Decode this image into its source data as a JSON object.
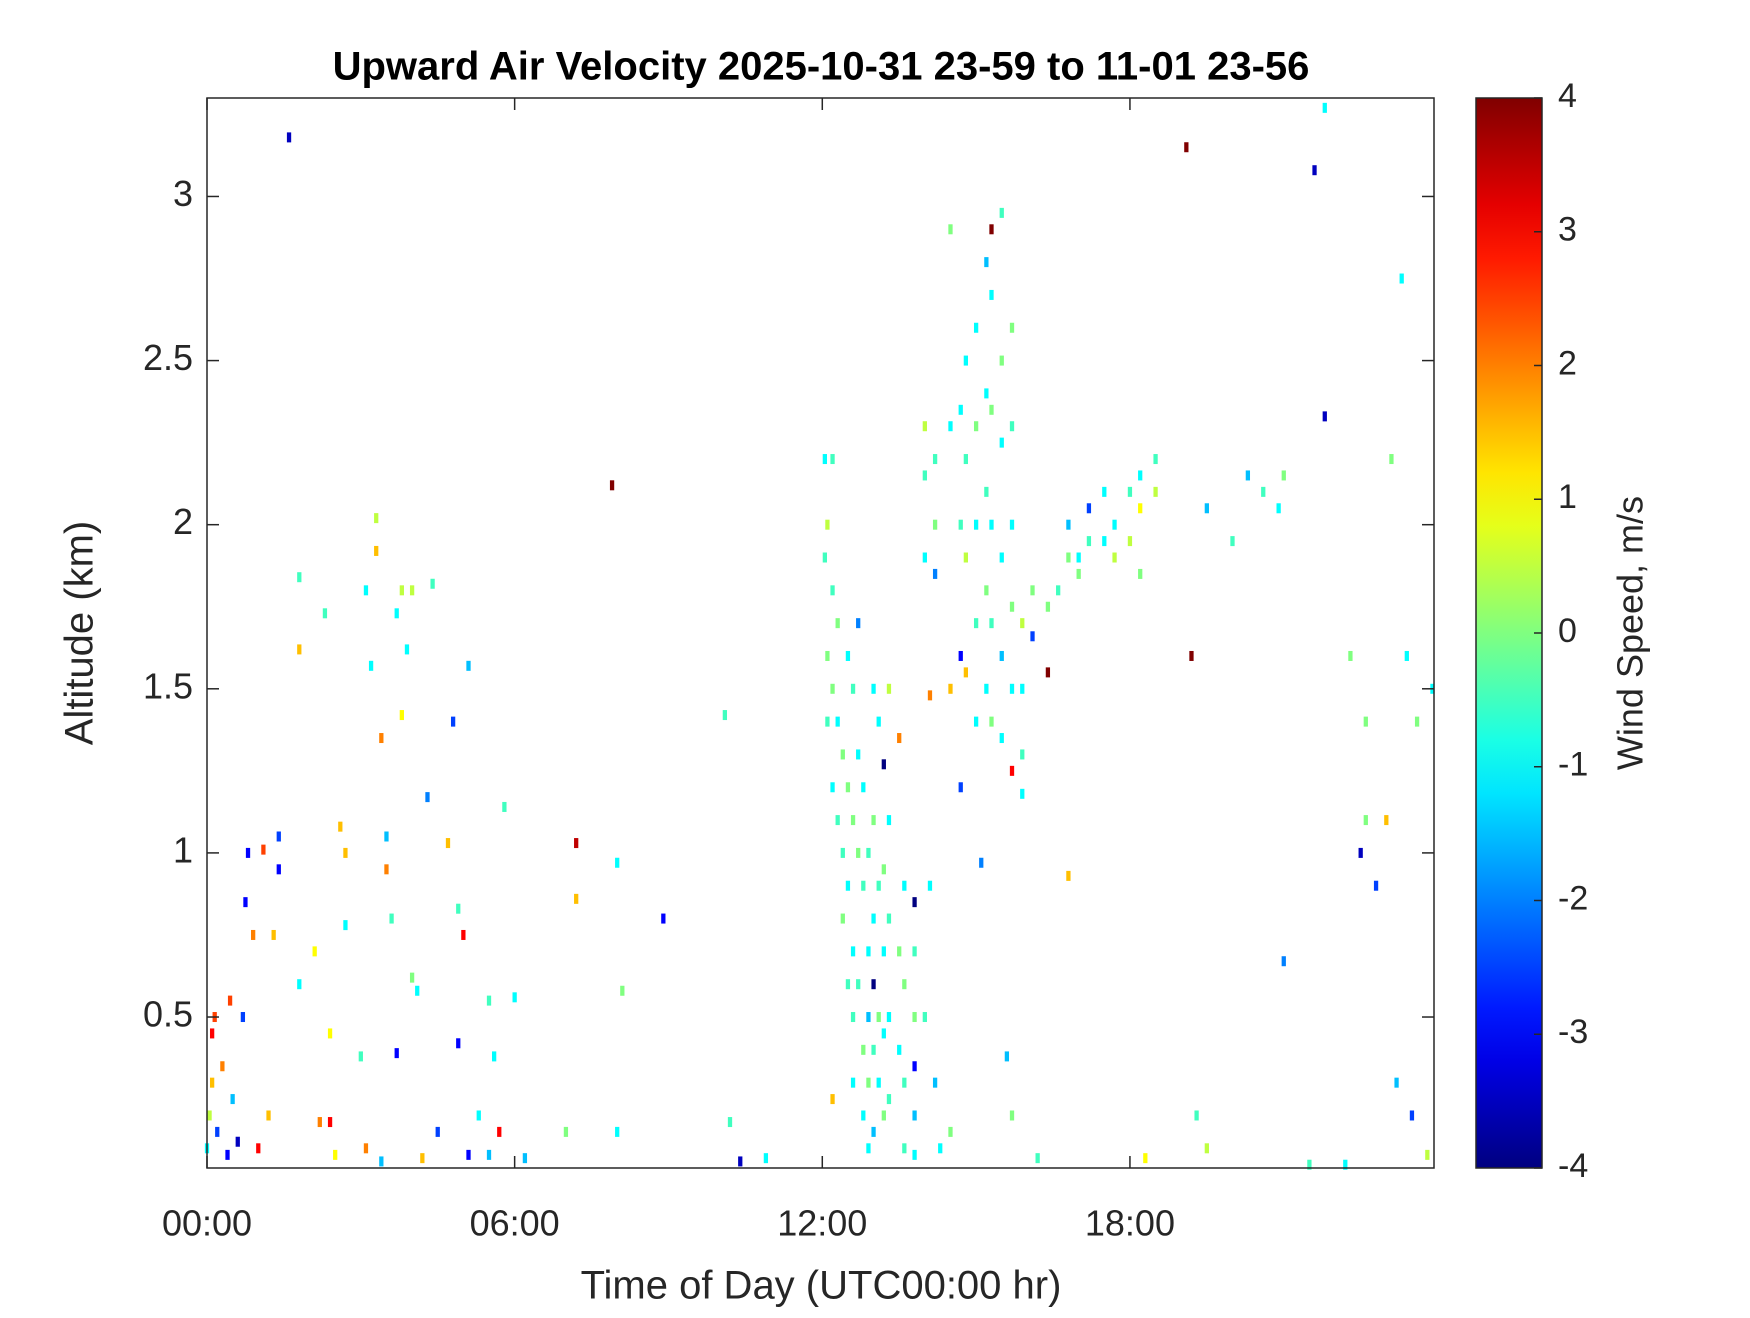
{
  "chart_data": {
    "type": "heatmap",
    "title": "Upward Air Velocity 2025-10-31 23-59 to 11-01 23-56",
    "x_label": "Time of Day (UTC00:00 hr)",
    "y_label": "Altitude (km)",
    "xlim": [
      0,
      23.93
    ],
    "xticks": [
      {
        "value": 0,
        "label": "00:00"
      },
      {
        "value": 6,
        "label": "06:00"
      },
      {
        "value": 12,
        "label": "12:00"
      },
      {
        "value": 18,
        "label": "18:00"
      }
    ],
    "ylim": [
      0.04,
      3.3
    ],
    "yticks": [
      0.5,
      1,
      1.5,
      2,
      2.5,
      3
    ],
    "colormap": "jet",
    "colorbar": {
      "label": "Wind Speed, m/s",
      "clim": [
        -4,
        4
      ],
      "ticks": [
        -4,
        -3,
        -2,
        -1,
        0,
        1,
        2,
        3,
        4
      ]
    },
    "x": [
      0,
      0.05,
      0.1,
      0.1,
      0.15,
      0.2,
      0.3,
      0.4,
      0.45,
      0.5,
      0.6,
      0.7,
      0.75,
      0.8,
      0.9,
      1,
      1.1,
      1.2,
      1.3,
      1.4,
      1.4,
      1.8,
      1.8,
      1.8,
      1.6,
      2.1,
      2.2,
      2.3,
      2.4,
      2.4,
      2.5,
      2.6,
      2.7,
      2.7,
      3,
      3.1,
      3.1,
      3.2,
      3.3,
      3.3,
      3.4,
      3.4,
      3.5,
      3.5,
      3.6,
      3.7,
      3.7,
      3.8,
      3.8,
      3.9,
      4,
      4,
      4.1,
      4.2,
      4.3,
      4.4,
      4.5,
      4.7,
      4.8,
      4.9,
      4.9,
      5,
      5.1,
      5.1,
      5.3,
      5.5,
      5.5,
      5.6,
      5.7,
      5.8,
      6,
      6.2,
      7,
      7.2,
      7.2,
      7.9,
      8,
      8,
      8.1,
      8.9,
      10.1,
      10.2,
      10.4,
      10.9,
      12.2,
      12.05,
      12.05,
      12.1,
      12.1,
      12.1,
      12.2,
      12.2,
      12.2,
      12.2,
      12.3,
      12.3,
      12.3,
      12.4,
      12.4,
      12.4,
      12.5,
      12.5,
      12.5,
      12.5,
      12.6,
      12.6,
      12.6,
      12.6,
      12.6,
      12.7,
      12.7,
      12.7,
      12.7,
      12.8,
      12.8,
      12.8,
      12.8,
      12.9,
      12.9,
      12.9,
      12.9,
      12.9,
      13,
      13,
      13,
      13,
      13,
      13,
      13.1,
      13.1,
      13.1,
      13.1,
      13.2,
      13.2,
      13.2,
      13.2,
      13.2,
      13.3,
      13.3,
      13.3,
      13.3,
      13.3,
      13.5,
      13.5,
      13.5,
      13.6,
      13.6,
      13.6,
      13.6,
      13.8,
      13.8,
      13.8,
      13.8,
      13.8,
      13.8,
      14,
      14,
      14,
      14,
      14.1,
      14.1,
      14.2,
      14.2,
      14.2,
      14.2,
      14.3,
      14.5,
      14.5,
      14.5,
      14.5,
      14.7,
      14.7,
      14.7,
      14.7,
      14.8,
      14.8,
      14.8,
      14.8,
      15,
      15,
      15,
      15,
      15,
      15.1,
      15.2,
      15.2,
      15.2,
      15.2,
      15.2,
      15.3,
      15.3,
      15.3,
      15.3,
      15.3,
      15.3,
      15.5,
      15.5,
      15.5,
      15.5,
      15.5,
      15.5,
      15.6,
      15.7,
      15.7,
      15.7,
      15.7,
      15.7,
      15.7,
      15.7,
      15.9,
      15.9,
      15.9,
      15.9,
      16.1,
      16.1,
      16.2,
      16.4,
      16.4,
      16.6,
      16.8,
      16.8,
      16.8,
      17,
      17,
      17.2,
      17.2,
      17.5,
      17.5,
      17.7,
      17.7,
      18,
      18,
      18.2,
      18.2,
      18.2,
      18.3,
      18.5,
      18.5,
      19.1,
      19.2,
      19.3,
      19.5,
      19.5,
      20,
      20.3,
      20.6,
      20.9,
      21,
      21,
      21.5,
      21.6,
      21.8,
      21.8,
      22.2,
      22.3,
      22.5,
      22.6,
      22.6,
      22.8,
      23,
      23.1,
      23.2,
      23.3,
      23.4,
      23.5,
      23.6,
      23.8,
      23.9
    ],
    "y": [
      0.1,
      0.2,
      0.3,
      0.45,
      0.5,
      0.15,
      0.35,
      0.08,
      0.55,
      0.25,
      0.12,
      0.5,
      0.85,
      1,
      0.75,
      0.1,
      1.01,
      0.2,
      0.75,
      1.05,
      0.95,
      0.6,
      1.62,
      1.84,
      3.18,
      0.7,
      0.18,
      1.73,
      0.45,
      0.18,
      0.08,
      1.08,
      1,
      0.78,
      0.38,
      0.1,
      1.8,
      1.57,
      2.02,
      1.92,
      0.06,
      1.35,
      0.95,
      1.05,
      0.8,
      1.73,
      0.39,
      1.8,
      1.42,
      1.62,
      1.8,
      0.62,
      0.58,
      0.07,
      1.17,
      1.82,
      0.15,
      1.03,
      1.4,
      0.83,
      0.42,
      0.75,
      1.57,
      0.08,
      0.2,
      0.55,
      0.08,
      0.38,
      0.15,
      1.14,
      0.56,
      0.07,
      0.15,
      1.03,
      0.86,
      2.12,
      0.97,
      0.15,
      0.58,
      0.8,
      1.42,
      0.18,
      0.06,
      0.07,
      0.25,
      1.9,
      2.2,
      1.6,
      1.4,
      2,
      1.8,
      1.5,
      1.2,
      2.2,
      1.7,
      1.4,
      1.1,
      1.3,
      1,
      0.8,
      1.6,
      1.2,
      0.9,
      0.6,
      1.5,
      1.1,
      0.7,
      0.5,
      0.3,
      1.7,
      1.3,
      1,
      0.6,
      1.2,
      0.9,
      0.4,
      0.2,
      1,
      0.7,
      0.5,
      0.3,
      0.1,
      1.5,
      1.1,
      0.8,
      0.6,
      0.4,
      0.15,
      1.4,
      0.9,
      0.5,
      0.3,
      1.27,
      0.95,
      0.7,
      0.45,
      0.2,
      1.5,
      1.1,
      0.8,
      0.5,
      0.25,
      1.35,
      0.7,
      0.4,
      0.9,
      0.6,
      0.3,
      0.1,
      0.85,
      0.7,
      0.5,
      0.35,
      0.2,
      0.08,
      2.3,
      2.15,
      1.9,
      0.5,
      0.9,
      1.48,
      2.2,
      2,
      1.85,
      0.3,
      0.1,
      2.9,
      2.3,
      1.5,
      0.15,
      2.35,
      2,
      1.6,
      1.2,
      2.5,
      2.2,
      1.9,
      1.55,
      2.6,
      2.3,
      2,
      1.7,
      1.4,
      0.97,
      2.8,
      2.4,
      2.1,
      1.8,
      1.5,
      2.9,
      2.7,
      2.35,
      2,
      1.7,
      1.4,
      2.95,
      2.5,
      2.25,
      1.9,
      1.6,
      1.35,
      0.38,
      2.6,
      2.3,
      2,
      1.75,
      1.5,
      1.25,
      0.2,
      1.7,
      1.5,
      1.3,
      1.18,
      1.8,
      1.66,
      0.07,
      1.55,
      1.75,
      1.8,
      1.9,
      2,
      0.93,
      1.9,
      1.85,
      1.95,
      2.05,
      1.95,
      2.1,
      1.9,
      2,
      2.1,
      1.95,
      2.05,
      1.85,
      2.15,
      0.07,
      2.1,
      2.2,
      3.15,
      1.6,
      0.2,
      2.05,
      0.1,
      1.95,
      2.15,
      2.1,
      2.05,
      2.15,
      0.67,
      0.05,
      3.08,
      2.33,
      3.27,
      0.05,
      1.6,
      1,
      1.4,
      1.1,
      0.9,
      1.1,
      2.2,
      0.3,
      2.75,
      1.6,
      0.2,
      1.4,
      0.08,
      1.5
    ],
    "values": [
      -1,
      0.5,
      1.5,
      3,
      2.5,
      -2.5,
      2,
      -3,
      2.5,
      -1.5,
      -3.5,
      -2.5,
      -3,
      -3,
      2,
      3,
      2.5,
      1.5,
      1.5,
      -2.5,
      -3,
      -1,
      1.5,
      -0.5,
      -3.5,
      1,
      2,
      -0.5,
      1,
      3,
      1,
      1.5,
      1.5,
      -1,
      -0.5,
      2,
      -1,
      -1,
      0.5,
      1.5,
      -1.5,
      2,
      2,
      -1.5,
      -0.5,
      -1,
      -3,
      0.5,
      1,
      -1,
      0.5,
      0,
      -1,
      1.5,
      -2,
      -0.5,
      -2.5,
      1.5,
      -2.5,
      -0.5,
      -3,
      3,
      -1.5,
      -3,
      -1,
      -0.5,
      -1.5,
      -1,
      3,
      -0.5,
      -1,
      -1.5,
      0,
      3.5,
      1.5,
      4,
      -1,
      -1,
      0,
      -3,
      -0.5,
      -0.5,
      -3.5,
      -1,
      1.5,
      -0.5,
      -1,
      0,
      -0.5,
      0.5,
      -0.5,
      0,
      -1,
      -0.5,
      0,
      -1,
      -0.5,
      0,
      -0.5,
      0,
      -1,
      0,
      -1,
      -0.5,
      -0.5,
      0,
      -1,
      -0.5,
      -1,
      -2,
      -1,
      0,
      -0.5,
      -1,
      -0.5,
      0,
      -1,
      -0.5,
      -1,
      -1.5,
      0,
      -1,
      -1,
      0,
      -1,
      -4,
      -0.5,
      -1.5,
      -1,
      -0.5,
      0,
      -1,
      -4,
      0,
      -1,
      -1,
      0,
      0.5,
      -1,
      -0.5,
      -1,
      -0.5,
      2,
      0,
      -1,
      -1,
      0,
      -0.5,
      -0.5,
      -4,
      -0.5,
      0,
      -3,
      -1.5,
      -1,
      0.5,
      -0.5,
      -1,
      -0.5,
      -1,
      2,
      -0.5,
      0,
      -2,
      -1.5,
      -1,
      0,
      -1,
      1.5,
      0,
      -1,
      -0.5,
      -3,
      -2.5,
      -1,
      -0.5,
      0.5,
      1.5,
      -1,
      0,
      -1,
      -0.5,
      -1,
      -2,
      -1.5,
      -1,
      -0.5,
      0,
      -1,
      4,
      -1,
      0,
      -1,
      -0.5,
      0,
      -0.5,
      0,
      -1,
      -1,
      -1.5,
      -1,
      -1.5,
      0,
      -0.5,
      -1,
      0,
      -1,
      3,
      0,
      0.5,
      -1,
      -0.5,
      -1,
      0,
      -2.5,
      -0.5,
      4,
      0,
      -0.5,
      0,
      -1.5,
      1.5,
      -1,
      0,
      -0.5,
      -2.5,
      -1,
      -1,
      0.5,
      -1,
      -0.5,
      0.5,
      1,
      0,
      -1,
      1,
      0.5,
      -0.5,
      4,
      4,
      -0.5,
      -1.5,
      0.5,
      -0.5,
      -1.5,
      -0.5,
      -1,
      0,
      -2,
      -0.5,
      -3.5,
      -3.5,
      -1,
      -1,
      0,
      -3.5,
      0,
      0,
      -2.5,
      1.5,
      0,
      -1.5,
      -1,
      -1,
      -2.5,
      0,
      0.5,
      -1
    ]
  }
}
